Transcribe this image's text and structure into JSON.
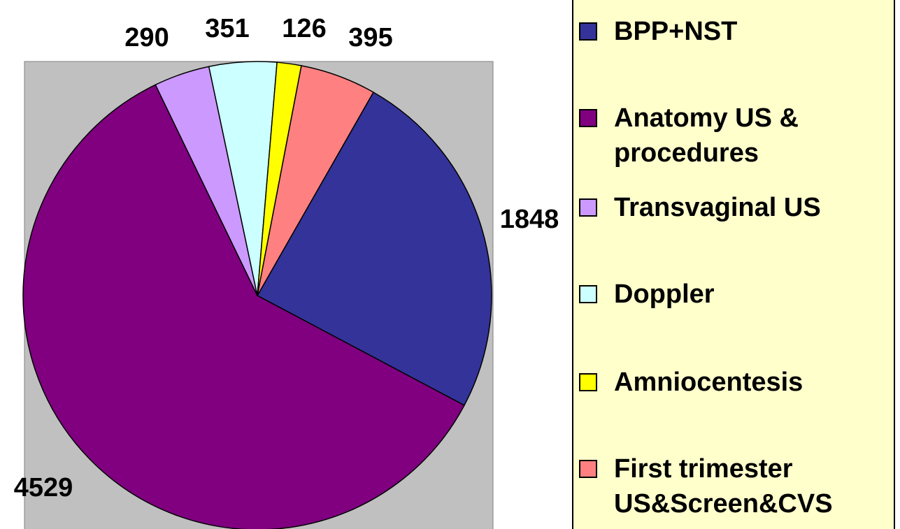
{
  "chart_data": {
    "type": "pie",
    "categories": [
      "BPP+NST",
      "Anatomy US & procedures",
      "Transvaginal US",
      "Doppler",
      "Amniocentesis",
      "First trimester US&Screen&CVS"
    ],
    "values": [
      1848,
      4529,
      290,
      351,
      126,
      395
    ],
    "colors": [
      "#333399",
      "#800080",
      "#CC99FF",
      "#CCFFFF",
      "#FFFF00",
      "#FF8080"
    ],
    "legend": "right"
  }
}
